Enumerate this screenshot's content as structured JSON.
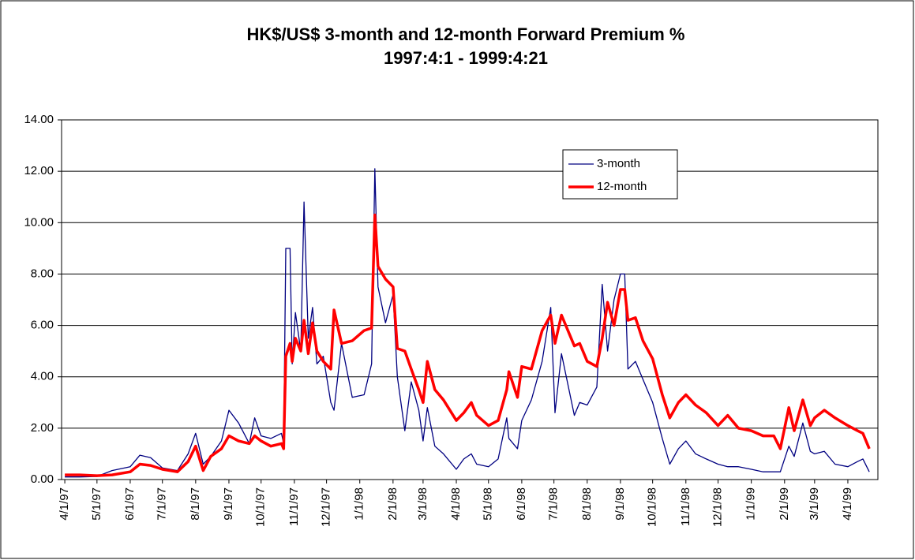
{
  "chart_data": {
    "type": "line",
    "title": "HK$/US$ 3-month and 12-month Forward Premium %",
    "subtitle": "1997:4:1 - 1999:4:21",
    "x": [
      "1997-04-01",
      "1997-04-15",
      "1997-05-01",
      "1997-05-15",
      "1997-06-01",
      "1997-06-10",
      "1997-06-20",
      "1997-07-01",
      "1997-07-15",
      "1997-07-25",
      "1997-08-01",
      "1997-08-08",
      "1997-08-15",
      "1997-08-25",
      "1997-09-01",
      "1997-09-10",
      "1997-09-20",
      "1997-09-25",
      "1997-10-01",
      "1997-10-10",
      "1997-10-20",
      "1997-10-22",
      "1997-10-24",
      "1997-10-28",
      "1997-10-30",
      "1997-11-02",
      "1997-11-07",
      "1997-11-10",
      "1997-11-14",
      "1997-11-18",
      "1997-11-22",
      "1997-11-28",
      "1997-12-05",
      "1997-12-08",
      "1997-12-15",
      "1997-12-25",
      "1998-01-05",
      "1998-01-12",
      "1998-01-15",
      "1998-01-18",
      "1998-01-25",
      "1998-02-01",
      "1998-02-05",
      "1998-02-12",
      "1998-02-18",
      "1998-02-25",
      "1998-03-01",
      "1998-03-05",
      "1998-03-12",
      "1998-03-20",
      "1998-04-01",
      "1998-04-08",
      "1998-04-15",
      "1998-04-20",
      "1998-05-01",
      "1998-05-10",
      "1998-05-18",
      "1998-05-20",
      "1998-05-28",
      "1998-06-01",
      "1998-06-10",
      "1998-06-20",
      "1998-06-28",
      "1998-07-02",
      "1998-07-08",
      "1998-07-20",
      "1998-07-25",
      "1998-08-01",
      "1998-08-10",
      "1998-08-15",
      "1998-08-20",
      "1998-08-26",
      "1998-09-01",
      "1998-09-05",
      "1998-09-08",
      "1998-09-15",
      "1998-09-22",
      "1998-10-01",
      "1998-10-10",
      "1998-10-17",
      "1998-10-25",
      "1998-11-01",
      "1998-11-10",
      "1998-11-20",
      "1998-12-01",
      "1998-12-10",
      "1998-12-20",
      "1999-01-01",
      "1999-01-12",
      "1999-01-22",
      "1999-01-28",
      "1999-02-05",
      "1999-02-10",
      "1999-02-18",
      "1999-02-25",
      "1999-03-01",
      "1999-03-10",
      "1999-03-20",
      "1999-04-01",
      "1999-04-10",
      "1999-04-15",
      "1999-04-21"
    ],
    "series": [
      {
        "name": "3-month",
        "color": "#000080",
        "width": 1.3,
        "values": [
          0.1,
          0.1,
          0.12,
          0.35,
          0.5,
          0.95,
          0.85,
          0.45,
          0.35,
          1.0,
          1.8,
          0.6,
          0.9,
          1.5,
          2.7,
          2.2,
          1.4,
          2.4,
          1.7,
          1.6,
          1.8,
          1.4,
          9.0,
          9.0,
          4.5,
          6.5,
          5.0,
          10.8,
          5.5,
          6.7,
          4.5,
          4.8,
          3.0,
          2.7,
          5.3,
          3.2,
          3.3,
          4.5,
          12.1,
          7.5,
          6.1,
          7.2,
          4.0,
          1.9,
          3.8,
          2.7,
          1.5,
          2.8,
          1.3,
          1.0,
          0.4,
          0.8,
          1.0,
          0.6,
          0.5,
          0.8,
          2.4,
          1.6,
          1.2,
          2.3,
          3.1,
          4.6,
          6.7,
          2.6,
          4.9,
          2.5,
          3.0,
          2.9,
          3.6,
          7.6,
          5.0,
          7.0,
          8.0,
          8.0,
          4.3,
          4.6,
          3.9,
          3.0,
          1.6,
          0.6,
          1.2,
          1.5,
          1.0,
          0.8,
          0.6,
          0.5,
          0.5,
          0.4,
          0.3,
          0.3,
          0.3,
          1.3,
          0.9,
          2.2,
          1.1,
          1.0,
          1.1,
          0.6,
          0.5,
          0.7,
          0.8,
          0.3
        ]
      },
      {
        "name": "12-month",
        "color": "#ff0000",
        "width": 3.5,
        "values": [
          0.18,
          0.18,
          0.15,
          0.18,
          0.3,
          0.6,
          0.55,
          0.4,
          0.3,
          0.7,
          1.3,
          0.35,
          0.9,
          1.2,
          1.7,
          1.5,
          1.4,
          1.7,
          1.5,
          1.3,
          1.4,
          1.2,
          4.8,
          5.3,
          4.6,
          5.5,
          5.0,
          6.2,
          4.9,
          6.1,
          5.0,
          4.6,
          4.3,
          6.6,
          5.3,
          5.4,
          5.8,
          5.9,
          10.3,
          8.3,
          7.8,
          7.5,
          5.1,
          5.0,
          4.3,
          3.5,
          3.0,
          4.6,
          3.5,
          3.1,
          2.3,
          2.6,
          3.0,
          2.5,
          2.1,
          2.3,
          3.5,
          4.2,
          3.2,
          4.4,
          4.3,
          5.8,
          6.4,
          5.3,
          6.4,
          5.2,
          5.3,
          4.6,
          4.4,
          5.5,
          6.9,
          6.0,
          7.4,
          7.4,
          6.2,
          6.3,
          5.4,
          4.7,
          3.3,
          2.4,
          3.0,
          3.3,
          2.9,
          2.6,
          2.1,
          2.5,
          2.0,
          1.9,
          1.7,
          1.7,
          1.2,
          2.8,
          1.9,
          3.1,
          2.1,
          2.4,
          2.7,
          2.4,
          2.1,
          1.9,
          1.8,
          1.2
        ]
      }
    ],
    "xlim": [
      "1997-03-29",
      "1999-04-29"
    ],
    "xticks": [
      {
        "value": "1997-04-01",
        "label": "4/1/97"
      },
      {
        "value": "1997-05-01",
        "label": "5/1/97"
      },
      {
        "value": "1997-06-01",
        "label": "6/1/97"
      },
      {
        "value": "1997-07-01",
        "label": "7/1/97"
      },
      {
        "value": "1997-08-01",
        "label": "8/1/97"
      },
      {
        "value": "1997-09-01",
        "label": "9/1/97"
      },
      {
        "value": "1997-10-01",
        "label": "10/1/97"
      },
      {
        "value": "1997-11-01",
        "label": "11/1/97"
      },
      {
        "value": "1997-12-01",
        "label": "12/1/97"
      },
      {
        "value": "1998-01-01",
        "label": "1/1/98"
      },
      {
        "value": "1998-02-01",
        "label": "2/1/98"
      },
      {
        "value": "1998-03-01",
        "label": "3/1/98"
      },
      {
        "value": "1998-04-01",
        "label": "4/1/98"
      },
      {
        "value": "1998-05-01",
        "label": "5/1/98"
      },
      {
        "value": "1998-06-01",
        "label": "6/1/98"
      },
      {
        "value": "1998-07-01",
        "label": "7/1/98"
      },
      {
        "value": "1998-08-01",
        "label": "8/1/98"
      },
      {
        "value": "1998-09-01",
        "label": "9/1/98"
      },
      {
        "value": "1998-10-01",
        "label": "10/1/98"
      },
      {
        "value": "1998-11-01",
        "label": "11/1/98"
      },
      {
        "value": "1998-12-01",
        "label": "12/1/98"
      },
      {
        "value": "1999-01-01",
        "label": "1/1/99"
      },
      {
        "value": "1999-02-01",
        "label": "2/1/99"
      },
      {
        "value": "1999-03-01",
        "label": "3/1/99"
      },
      {
        "value": "1999-04-01",
        "label": "4/1/99"
      }
    ],
    "ylim": [
      0,
      14
    ],
    "yticks": [
      {
        "value": 0,
        "label": "0.00"
      },
      {
        "value": 2,
        "label": "2.00"
      },
      {
        "value": 4,
        "label": "4.00"
      },
      {
        "value": 6,
        "label": "6.00"
      },
      {
        "value": 8,
        "label": "8.00"
      },
      {
        "value": 10,
        "label": "10.00"
      },
      {
        "value": 12,
        "label": "12.00"
      },
      {
        "value": 14,
        "label": "14.00"
      }
    ],
    "grid": true
  }
}
